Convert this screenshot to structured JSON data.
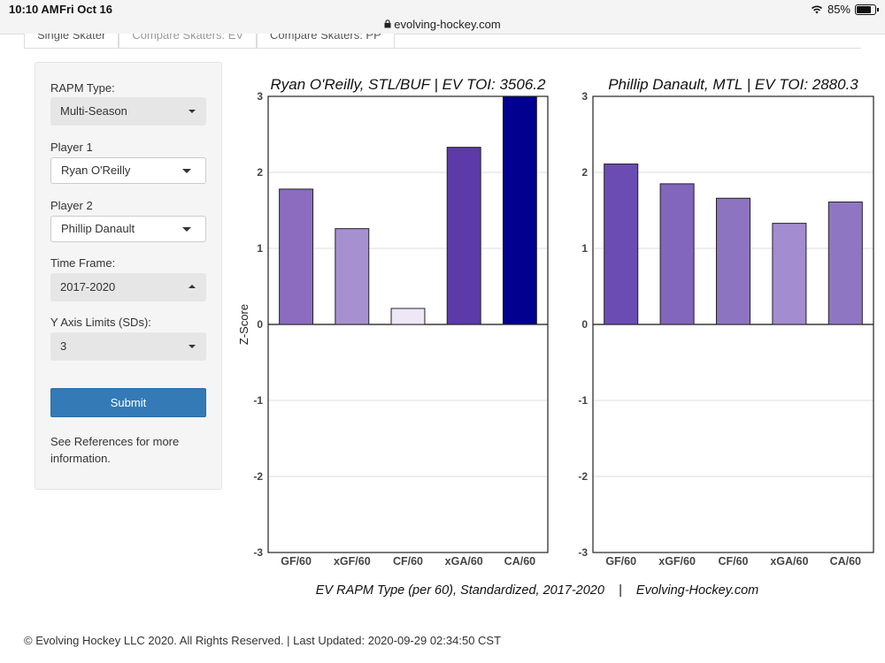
{
  "statusbar": {
    "time": "10:10 AM",
    "date": "Fri Oct 16",
    "battery": "85%"
  },
  "browser": {
    "url": "evolving-hockey.com"
  },
  "tabs": [
    {
      "label": "Single Skater"
    },
    {
      "label": "Compare Skaters: EV"
    },
    {
      "label": "Compare Skaters: PP"
    }
  ],
  "sidebar": {
    "rapm_type": {
      "label": "RAPM Type:",
      "value": "Multi-Season"
    },
    "player1": {
      "label": "Player 1",
      "value": "Ryan O'Reilly"
    },
    "player2": {
      "label": "Player 2",
      "value": "Phillip Danault"
    },
    "time_frame": {
      "label": "Time Frame:",
      "value": "2017-2020"
    },
    "y_axis": {
      "label": "Y Axis Limits (SDs):",
      "value": "3"
    },
    "submit_label": "Submit",
    "references_text": "See References for more information."
  },
  "chart_data": {
    "type": "bar",
    "ylabel": "Z-Score",
    "caption": "EV RAPM Type (per 60), Standardized, 2017-2020    |    Evolving-Hockey.com",
    "ylim": [
      -3,
      3
    ],
    "yticks": [
      3,
      2,
      1,
      0,
      -1,
      -2,
      -3
    ],
    "grid": true,
    "categories": [
      "GF/60",
      "xGF/60",
      "CF/60",
      "xGA/60",
      "CA/60"
    ],
    "panels": [
      {
        "title": "Ryan O'Reilly, STL/BUF  |  EV TOI: 3506.2",
        "values": [
          1.78,
          1.26,
          0.21,
          2.33,
          3.0
        ],
        "colors": [
          "#8a6dbf",
          "#a790d0",
          "#eee8f6",
          "#5c3aa8",
          "#02008f"
        ]
      },
      {
        "title": "Phillip Danault, MTL  |  EV TOI: 2880.3",
        "values": [
          2.11,
          1.85,
          1.66,
          1.33,
          1.61
        ],
        "colors": [
          "#6b4cb2",
          "#8166bb",
          "#8d74c1",
          "#a38ccf",
          "#8f76c3"
        ]
      }
    ]
  },
  "footer": {
    "text": "© Evolving Hockey LLC 2020. All Rights Reserved. | Last Updated: 2020-09-29 02:34:50 CST"
  }
}
